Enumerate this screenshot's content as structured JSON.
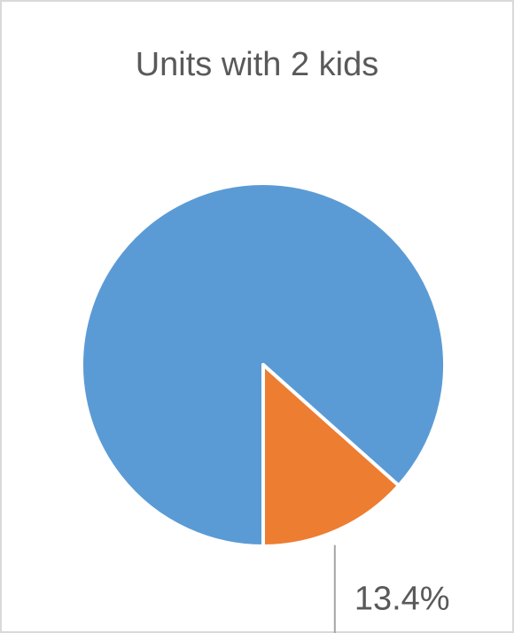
{
  "chart_data": {
    "type": "pie",
    "title": "Units with 2 kids",
    "values": [
      86.6,
      13.4
    ],
    "value_labels": [
      null,
      "13.4%"
    ],
    "colors": [
      "#5b9bd5",
      "#ed7d31"
    ]
  }
}
